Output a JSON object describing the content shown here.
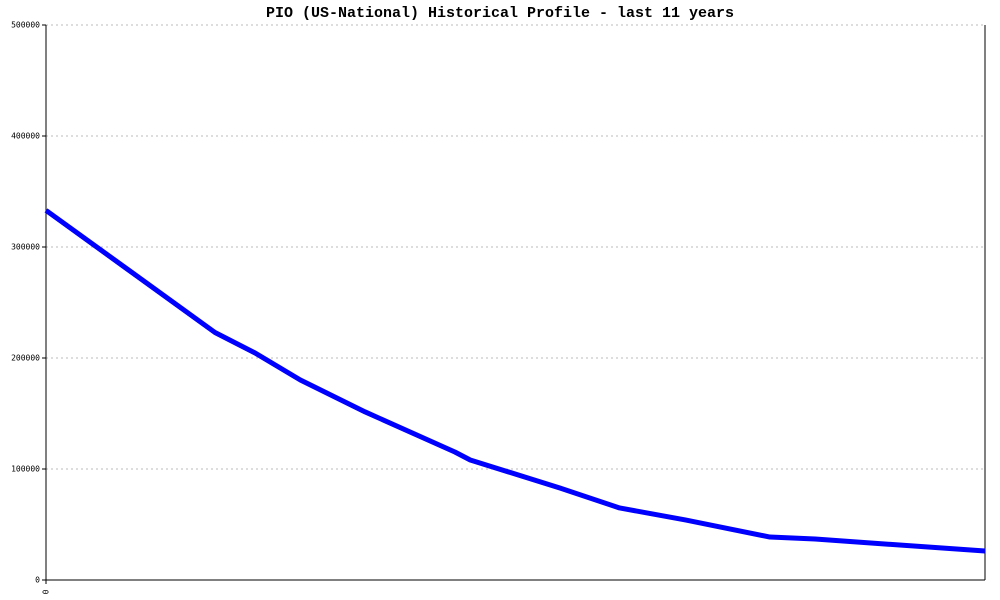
{
  "chart_data": {
    "type": "line",
    "title": "PIO (US-National) Historical Profile - last 11 years",
    "x": [
      0,
      1.98,
      2.45,
      2.98,
      3.74,
      4.79,
      4.97,
      6.02,
      6.72,
      7.49,
      8.48,
      9.01,
      11
    ],
    "series": [
      {
        "color": "#0000ff",
        "values": [
          333000,
          223000,
          204500,
          180200,
          151400,
          115300,
          108100,
          82900,
          64900,
          54100,
          38700,
          36900,
          26100
        ]
      }
    ],
    "xlim": [
      0,
      11
    ],
    "xticks": [
      0
    ],
    "ylim": [
      0,
      500000
    ],
    "yticks": [
      0,
      100000,
      200000,
      300000,
      400000,
      500000
    ],
    "grid": true
  }
}
